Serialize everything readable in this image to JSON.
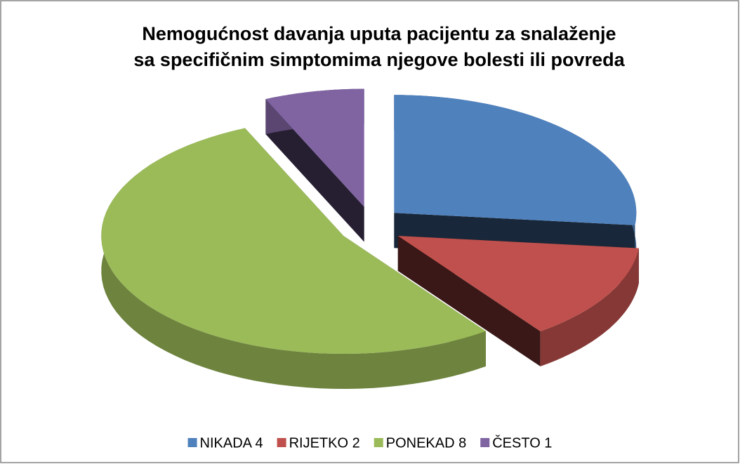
{
  "chart_data": {
    "type": "pie3d",
    "title": [
      "Nemogućnost davanja uputa pacijentu  za snalaženje",
      "sa specifičnim simptomima njegove bolesti ili povreda"
    ],
    "categories": [
      "NIKADA 4",
      "RIJETKO 2",
      "PONEKAD 8",
      "ČESTO 1"
    ],
    "values": [
      4,
      2,
      8,
      1
    ],
    "colors": [
      "#4f81bd",
      "#c0504d",
      "#9bbb59",
      "#8064a2"
    ],
    "legend": "bottom"
  }
}
